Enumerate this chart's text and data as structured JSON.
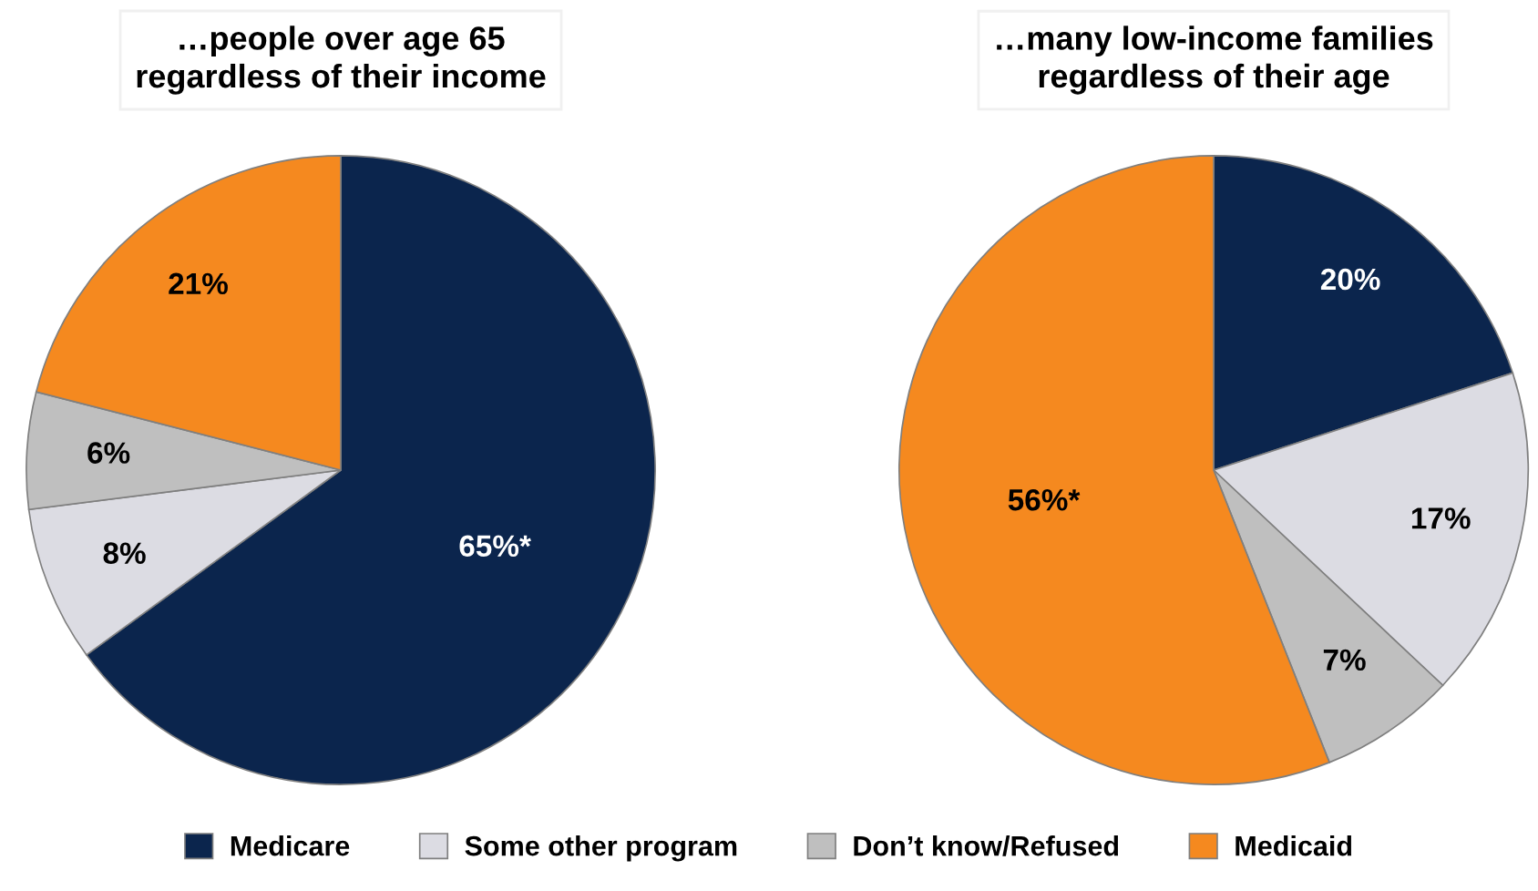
{
  "chart_data": [
    {
      "type": "pie",
      "title": "…people over age 65\nregardless of their income",
      "categories": [
        "Medicare",
        "Some other program",
        "Don’t know/Refused",
        "Medicaid"
      ],
      "values": [
        65,
        8,
        6,
        21
      ],
      "value_labels": [
        "65%*",
        "8%",
        "6%",
        "21%"
      ],
      "colors": [
        "#0b254d",
        "#dcdce3",
        "#bfbfbf",
        "#f5891f"
      ],
      "legend": "bottom"
    },
    {
      "type": "pie",
      "title": "…many low-income families\nregardless of their age",
      "categories": [
        null,
        null,
        null,
        null
      ],
      "values": [
        20,
        17,
        7,
        56
      ],
      "value_labels": [
        "20%",
        "17%",
        "7%",
        "56%*"
      ],
      "colors": [
        "#0b254d",
        "#dcdce3",
        "#bfbfbf",
        "#f5891f"
      ]
    }
  ]
}
